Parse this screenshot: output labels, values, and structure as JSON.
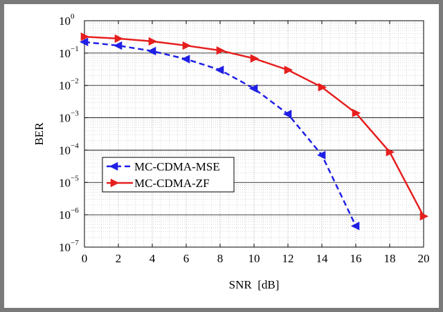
{
  "chart_data": {
    "type": "line",
    "xlabel": "SNR  [dB]",
    "ylabel": "BER",
    "x_axis": {
      "range": [
        0,
        20
      ],
      "ticks": [
        0,
        2,
        4,
        6,
        8,
        10,
        12,
        14,
        16,
        18,
        20
      ],
      "tick_labels": [
        "0",
        "2",
        "4",
        "6",
        "8",
        "10",
        "12",
        "14",
        "16",
        "18",
        "20"
      ]
    },
    "y_axis": {
      "scale": "log",
      "range": [
        1e-07,
        1
      ],
      "ticks": [
        1e-07,
        1e-06,
        1e-05,
        0.0001,
        0.001,
        0.01,
        0.1,
        1
      ],
      "tick_labels": [
        {
          "base": "10",
          "exp": "−7"
        },
        {
          "base": "10",
          "exp": "−6"
        },
        {
          "base": "10",
          "exp": "−5"
        },
        {
          "base": "10",
          "exp": "−4"
        },
        {
          "base": "10",
          "exp": "−3"
        },
        {
          "base": "10",
          "exp": "−2"
        },
        {
          "base": "10",
          "exp": "−1"
        },
        {
          "base": "10",
          "exp": "0"
        }
      ]
    },
    "grid": true,
    "minor_grid": true,
    "legend_position": "lower-left",
    "series": [
      {
        "name": "MC-CDMA-MSE",
        "color": "#1f1fe6",
        "line_style": "dashed",
        "marker": "triangle-left",
        "x": [
          0,
          2,
          4,
          6,
          8,
          10,
          12,
          14,
          16
        ],
        "y": [
          0.22,
          0.17,
          0.115,
          0.065,
          0.03,
          0.008,
          0.0013,
          7e-05,
          4.5e-07
        ]
      },
      {
        "name": "MC-CDMA-ZF",
        "color": "#e61e1e",
        "line_style": "solid",
        "marker": "triangle-right",
        "x": [
          0,
          2,
          4,
          6,
          8,
          10,
          12,
          14,
          16,
          18,
          20
        ],
        "y": [
          0.32,
          0.28,
          0.23,
          0.17,
          0.12,
          0.068,
          0.03,
          0.0088,
          0.0014,
          8.7e-05,
          9e-07
        ]
      }
    ]
  }
}
